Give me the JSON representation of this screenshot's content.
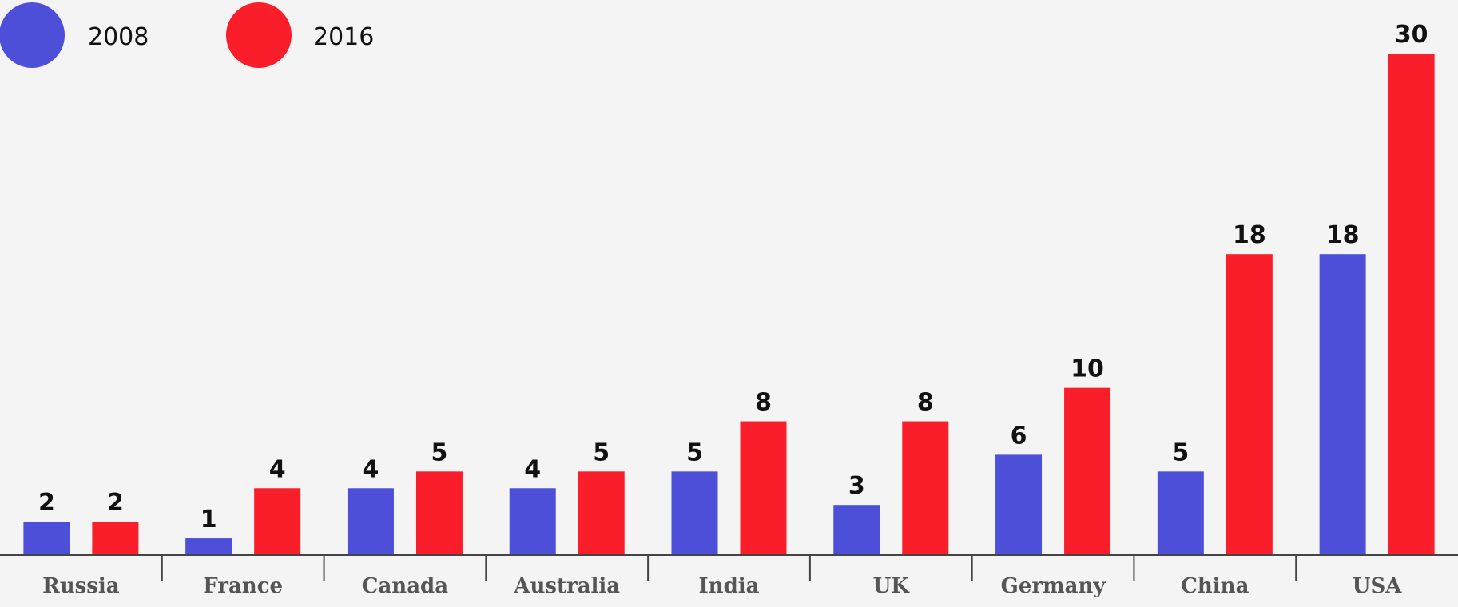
{
  "chart_data": {
    "type": "bar",
    "categories": [
      "Russia",
      "France",
      "Canada",
      "Australia",
      "India",
      "UK",
      "Germany",
      "China",
      "USA"
    ],
    "series": [
      {
        "name": "2008",
        "color": "#4d4fd9",
        "values": [
          2,
          1,
          4,
          4,
          5,
          3,
          6,
          5,
          18
        ]
      },
      {
        "name": "2016",
        "color": "#fa1e2a",
        "values": [
          2,
          4,
          5,
          5,
          8,
          8,
          10,
          18,
          30
        ]
      }
    ],
    "ylim": [
      0,
      30
    ],
    "grid": false,
    "legend_position": "top-left"
  }
}
